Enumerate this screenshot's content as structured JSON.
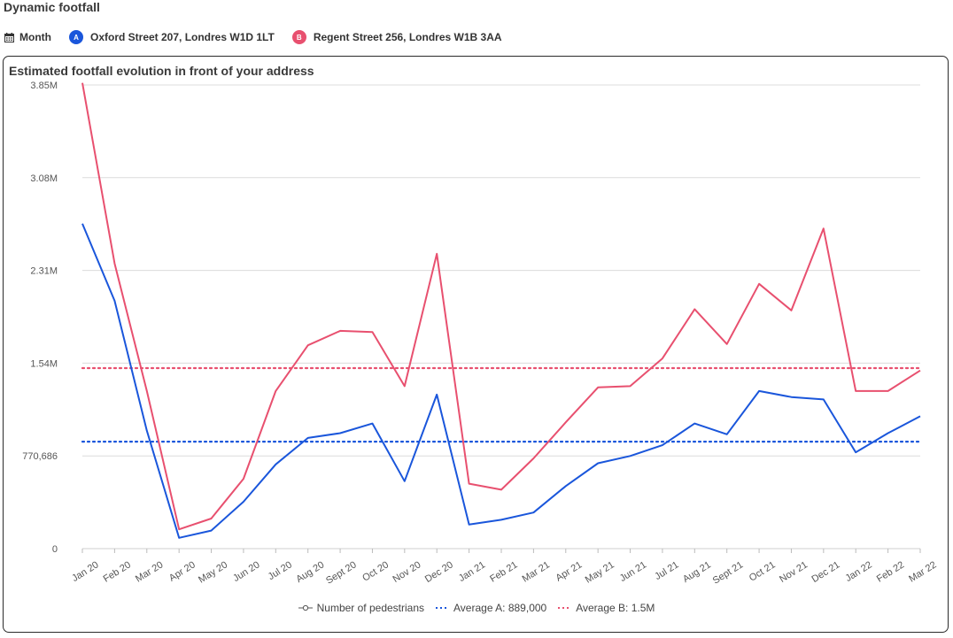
{
  "page": {
    "title": "Dynamic footfall"
  },
  "filters": {
    "period": {
      "icon": "calendar-icon",
      "label": "Month"
    },
    "locations": [
      {
        "badge": "A",
        "label": "Oxford Street 207, Londres W1D 1LT",
        "color": "#1a56db"
      },
      {
        "badge": "B",
        "label": "Regent Street 256, Londres W1B 3AA",
        "color": "#e8506f"
      }
    ]
  },
  "chart_title": "Estimated footfall evolution in front of your address",
  "legend": {
    "pedestrians": "Number of pedestrians",
    "avg_a": "Average A: 889,000",
    "avg_b": "Average B: 1.5M"
  },
  "chart_data": {
    "type": "line",
    "title": "Estimated footfall evolution in front of your address",
    "xlabel": "",
    "ylabel": "",
    "categories": [
      "Jan 20",
      "Feb 20",
      "Mar 20",
      "Apr 20",
      "May 20",
      "Jun 20",
      "Jul 20",
      "Aug 20",
      "Sept 20",
      "Oct 20",
      "Nov 20",
      "Dec 20",
      "Jan 21",
      "Feb 21",
      "Mar 21",
      "Apr 21",
      "May 21",
      "Jun 21",
      "Jul 21",
      "Aug 21",
      "Sept 21",
      "Oct 21",
      "Nov 21",
      "Dec 21",
      "Jan 22",
      "Feb 22",
      "Mar 22"
    ],
    "yticks": [
      {
        "value": 0,
        "label": "0"
      },
      {
        "value": 770686,
        "label": "770,686"
      },
      {
        "value": 1541372,
        "label": "1.54M"
      },
      {
        "value": 2312058,
        "label": "2.31M"
      },
      {
        "value": 3082744,
        "label": "3.08M"
      },
      {
        "value": 3853430,
        "label": "3.85M"
      }
    ],
    "ylim": [
      0,
      3853430
    ],
    "grid": true,
    "legend_position": "bottom",
    "series": [
      {
        "name": "A",
        "color": "#1a56db",
        "values": [
          2700000,
          2060000,
          980000,
          90000,
          150000,
          390000,
          700000,
          920000,
          960000,
          1040000,
          560000,
          1280000,
          200000,
          240000,
          300000,
          520000,
          710000,
          770000,
          860000,
          1040000,
          950000,
          1310000,
          1260000,
          1240000,
          800000,
          960000,
          1100000
        ]
      },
      {
        "name": "B",
        "color": "#e8506f",
        "values": [
          3870000,
          2370000,
          1310000,
          160000,
          250000,
          580000,
          1310000,
          1690000,
          1810000,
          1800000,
          1350000,
          2450000,
          540000,
          490000,
          750000,
          1050000,
          1340000,
          1350000,
          1580000,
          1990000,
          1700000,
          2200000,
          1980000,
          2660000,
          1310000,
          1310000,
          1480000
        ]
      }
    ],
    "averages": [
      {
        "label": "Average A: 889,000",
        "value": 889000,
        "color": "#1a56db"
      },
      {
        "label": "Average B: 1.5M",
        "value": 1500000,
        "color": "#e8506f"
      }
    ]
  }
}
